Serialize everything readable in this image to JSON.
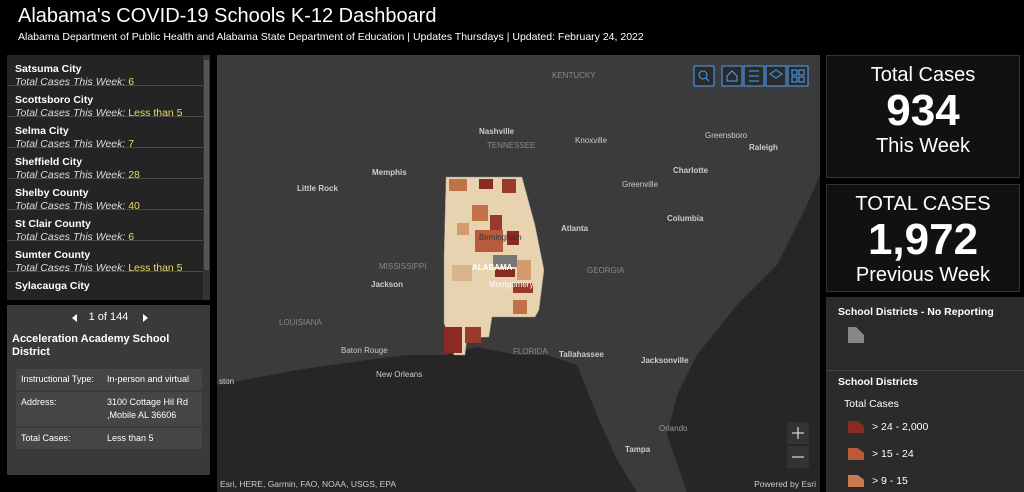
{
  "header": {
    "title": "Alabama's COVID-19 Schools K-12 Dashboard",
    "subtitle": "Alabama Department of Public Health and Alabama State Department of Education | Updates Thursdays | Updated: February 24, 2022"
  },
  "list": {
    "items": [
      {
        "name": "Satsuma City",
        "label": "Total Cases This Week:",
        "value": "6"
      },
      {
        "name": "Scottsboro City",
        "label": "Total Cases This Week:",
        "value": "Less than 5"
      },
      {
        "name": "Selma City",
        "label": "Total Cases This Week:",
        "value": "7"
      },
      {
        "name": "Sheffield City",
        "label": "Total Cases This Week:",
        "value": "28"
      },
      {
        "name": "Shelby County",
        "label": "Total Cases This Week:",
        "value": "40"
      },
      {
        "name": "St Clair County",
        "label": "Total Cases This Week:",
        "value": "6"
      },
      {
        "name": "Sumter County",
        "label": "Total Cases This Week:",
        "value": "Less than 5"
      },
      {
        "name": "Sylacauga City"
      }
    ]
  },
  "detail": {
    "pager": "1 of 144",
    "title": "Acceleration Academy School District",
    "rows": [
      [
        "Instructional Type:",
        "In-person and virtual"
      ],
      [
        "Address:",
        "3100 Cottage Hil Rd ,Mobile AL 36606"
      ],
      [
        "Total Cases:",
        "Less than 5"
      ]
    ]
  },
  "map": {
    "labels": [
      "KENTUCKY",
      "Nashville",
      "TENNESSEE",
      "Knoxville",
      "Greensboro",
      "Raleigh",
      "Memphis",
      "Charlotte",
      "Greenville",
      "Little Rock",
      "Columbia",
      "Atlanta",
      "Birmingham",
      "MISSISSIPPI",
      "ALABAMA",
      "GEORGIA",
      "Jackson",
      "Montgomery",
      "LOUISIANA",
      "FLORIDA",
      "Tallahassee",
      "Jacksonville",
      "Baton Rouge",
      "New Orleans",
      "ston",
      "Orlando",
      "Tampa"
    ],
    "attribution": "Esri, HERE, Garmin, FAO, NOAA, USGS, EPA",
    "powered": "Powered by Esri"
  },
  "cards": [
    {
      "title": "Total Cases",
      "value": "934",
      "subtitle": "This Week"
    },
    {
      "title": "TOTAL CASES",
      "value": "1,972",
      "subtitle": "Previous Week"
    }
  ],
  "legend": {
    "no_reporting": "School Districts - No Reporting",
    "districts": "School Districts",
    "field": "Total Cases",
    "items": [
      "> 24 - 2,000",
      "> 15 - 24",
      "> 9 - 15"
    ]
  }
}
